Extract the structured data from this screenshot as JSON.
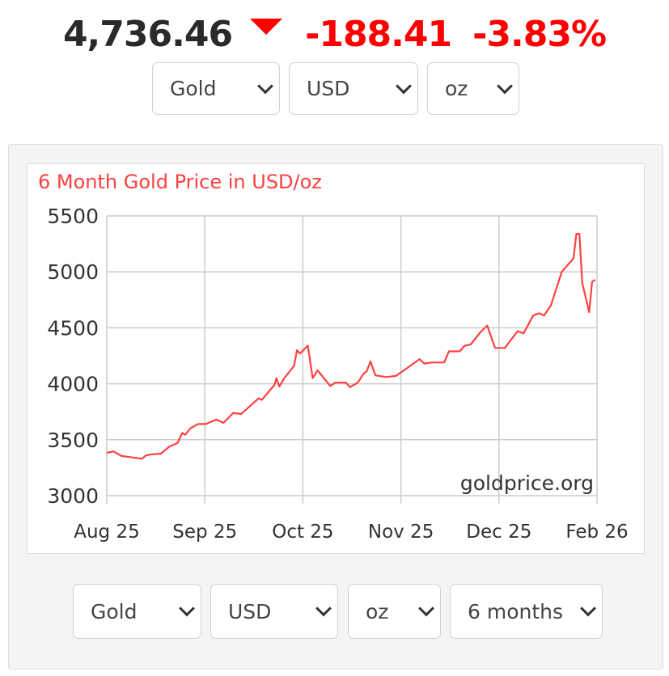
{
  "header": {
    "price": "4,736.46",
    "change": "-188.41",
    "change_pct": "-3.83%",
    "direction_icon": "down-triangle-icon",
    "down_color": "#ff0000"
  },
  "top_selects": [
    {
      "label": "Gold"
    },
    {
      "label": "USD"
    },
    {
      "label": "oz"
    }
  ],
  "bottom_selects": [
    {
      "label": "Gold"
    },
    {
      "label": "USD"
    },
    {
      "label": "oz"
    },
    {
      "label": "6 months"
    }
  ],
  "chart_data": {
    "type": "line",
    "title": "6 Month Gold Price in USD/oz",
    "watermark": "goldprice.org",
    "xlabel": "",
    "ylabel": "",
    "ylim": [
      3000,
      5500
    ],
    "xlim": [
      0,
      5
    ],
    "yticks": [
      3000,
      3500,
      4000,
      4500,
      5000,
      5500
    ],
    "xticks": [
      {
        "pos": 0,
        "label": "Aug 25"
      },
      {
        "pos": 1,
        "label": "Sep 25"
      },
      {
        "pos": 2,
        "label": "Oct 25"
      },
      {
        "pos": 3,
        "label": "Nov 25"
      },
      {
        "pos": 4,
        "label": "Dec 25"
      },
      {
        "pos": 5,
        "label": "Feb 26"
      }
    ],
    "grid": true,
    "line_color": "#ff4040",
    "series": [
      {
        "name": "Gold USD/oz",
        "x": [
          0,
          0.07,
          0.15,
          0.24,
          0.36,
          0.4,
          0.46,
          0.55,
          0.64,
          0.72,
          0.77,
          0.8,
          0.85,
          0.93,
          1.01,
          1.12,
          1.19,
          1.29,
          1.37,
          1.55,
          1.58,
          1.71,
          1.73,
          1.76,
          1.81,
          1.91,
          1.94,
          1.97,
          2.05,
          2.1,
          2.15,
          2.28,
          2.33,
          2.44,
          2.48,
          2.56,
          2.62,
          2.65,
          2.69,
          2.74,
          2.85,
          2.95,
          3.03,
          3.11,
          3.19,
          3.24,
          3.31,
          3.44,
          3.49,
          3.6,
          3.65,
          3.71,
          3.81,
          3.88,
          3.96,
          4.06,
          4.19,
          4.25,
          4.35,
          4.41,
          4.46,
          4.53,
          4.64,
          4.76,
          4.79,
          4.82,
          4.85,
          4.92,
          4.95,
          4.98
        ],
        "values": [
          3383,
          3395,
          3355,
          3345,
          3330,
          3360,
          3370,
          3375,
          3440,
          3470,
          3560,
          3545,
          3600,
          3640,
          3640,
          3680,
          3650,
          3740,
          3730,
          3870,
          3855,
          3990,
          4050,
          3975,
          4050,
          4160,
          4300,
          4270,
          4340,
          4050,
          4120,
          3980,
          4010,
          4010,
          3970,
          4010,
          4090,
          4110,
          4200,
          4075,
          4060,
          4070,
          4120,
          4170,
          4220,
          4180,
          4190,
          4190,
          4290,
          4290,
          4340,
          4350,
          4460,
          4520,
          4320,
          4320,
          4470,
          4450,
          4610,
          4630,
          4610,
          4700,
          5000,
          5120,
          5340,
          5340,
          4900,
          4640,
          4910,
          4930
        ]
      }
    ]
  }
}
